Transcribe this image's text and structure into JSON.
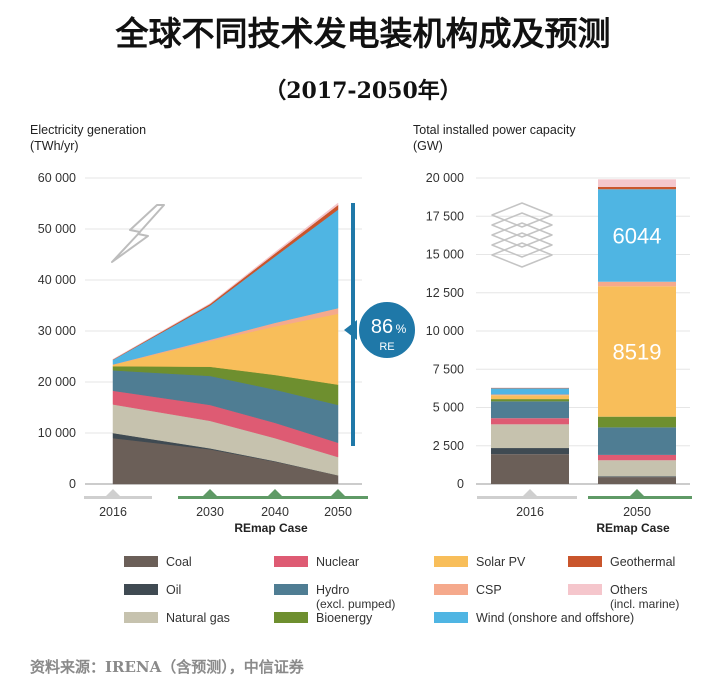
{
  "header": {
    "title": "全球不同技术发电装机构成及预测",
    "subtitle": "（2017-2050年）"
  },
  "footer": {
    "source": "资料来源：IRENA（含预测），中信证券"
  },
  "colors": {
    "coal": "#6b5f58",
    "oil": "#3f4a52",
    "natural_gas": "#c6c2ae",
    "nuclear": "#de5b73",
    "hydro": "#4f7d93",
    "bioenergy": "#6e8f2f",
    "solar_pv": "#f8be5a",
    "csp": "#f5a98c",
    "wind": "#4fb5e3",
    "geothermal": "#c9552c",
    "others": "#f5c6cc",
    "accent": "#1f78a8",
    "timeline_grey": "#cfcfcf",
    "timeline_green": "#5f9a66"
  },
  "icons": {
    "lightning": "lightning-icon",
    "layers": "layers-icon"
  },
  "chart_data": [
    {
      "type": "area",
      "title": "Electricity generation",
      "ylabel": "(TWh/yr)",
      "x": [
        "2016",
        "2030",
        "2040",
        "2050"
      ],
      "x_group_label": "REmap Case",
      "ylim": [
        0,
        60000
      ],
      "yticks": [
        0,
        10000,
        20000,
        30000,
        40000,
        50000,
        60000
      ],
      "ytick_labels": [
        "0",
        "10 000",
        "20 000",
        "30 000",
        "40 000",
        "50 000",
        "60 000"
      ],
      "series": [
        {
          "name": "Coal",
          "key": "coal",
          "values": [
            9000,
            6800,
            4400,
            1700
          ]
        },
        {
          "name": "Oil",
          "key": "oil",
          "values": [
            1000,
            200,
            100,
            0
          ]
        },
        {
          "name": "Natural gas",
          "key": "natural_gas",
          "values": [
            5600,
            5400,
            4500,
            3600
          ]
        },
        {
          "name": "Nuclear",
          "key": "nuclear",
          "values": [
            2700,
            3100,
            3000,
            2800
          ]
        },
        {
          "name": "Hydro",
          "key": "hydro",
          "values": [
            4000,
            5700,
            6500,
            7400
          ]
        },
        {
          "name": "Bioenergy",
          "key": "bioenergy",
          "values": [
            800,
            1800,
            2900,
            4000
          ]
        },
        {
          "name": "Solar PV",
          "key": "solar_pv",
          "values": [
            300,
            5000,
            9500,
            13900
          ]
        },
        {
          "name": "CSP",
          "key": "csp",
          "values": [
            50,
            300,
            700,
            1100
          ]
        },
        {
          "name": "Wind",
          "key": "wind",
          "values": [
            900,
            6700,
            13000,
            19300
          ]
        },
        {
          "name": "Geothermal",
          "key": "geothermal",
          "values": [
            80,
            300,
            600,
            900
          ]
        },
        {
          "name": "Others",
          "key": "others",
          "values": [
            20,
            100,
            250,
            400
          ]
        }
      ],
      "annotation": {
        "value": "86",
        "unit": "%",
        "label": "RE"
      }
    },
    {
      "type": "bar",
      "stacked": true,
      "title": "Total installed power capacity",
      "ylabel": "(GW)",
      "categories": [
        "2016",
        "2050"
      ],
      "x_group_label": "REmap Case",
      "ylim": [
        0,
        20000
      ],
      "yticks": [
        0,
        2500,
        5000,
        7500,
        10000,
        12500,
        15000,
        17500,
        20000
      ],
      "ytick_labels": [
        "0",
        "2 500",
        "5 000",
        "7 500",
        "10 000",
        "12 500",
        "15 000",
        "17 500",
        "20 000"
      ],
      "series": [
        {
          "name": "Coal",
          "key": "coal",
          "values": [
            1950,
            450
          ]
        },
        {
          "name": "Oil",
          "key": "oil",
          "values": [
            400,
            50
          ]
        },
        {
          "name": "Natural gas",
          "key": "natural_gas",
          "values": [
            1550,
            1050
          ]
        },
        {
          "name": "Nuclear",
          "key": "nuclear",
          "values": [
            400,
            350
          ]
        },
        {
          "name": "Hydro",
          "key": "hydro",
          "values": [
            1100,
            1800
          ]
        },
        {
          "name": "Bioenergy",
          "key": "bioenergy",
          "values": [
            150,
            700
          ]
        },
        {
          "name": "Solar PV",
          "key": "solar_pv",
          "values": [
            250,
            8519
          ]
        },
        {
          "name": "CSP",
          "key": "csp",
          "values": [
            50,
            300
          ]
        },
        {
          "name": "Wind",
          "key": "wind",
          "values": [
            400,
            6044
          ]
        },
        {
          "name": "Geothermal",
          "key": "geothermal",
          "values": [
            30,
            150
          ]
        },
        {
          "name": "Others",
          "key": "others",
          "values": [
            20,
            500
          ]
        }
      ],
      "data_labels": [
        {
          "series": "wind",
          "category": "2050",
          "text": "6044"
        },
        {
          "series": "solar_pv",
          "category": "2050",
          "text": "8519"
        }
      ]
    }
  ],
  "legend": {
    "items": [
      {
        "key": "coal",
        "label": "Coal",
        "label2": ""
      },
      {
        "key": "nuclear",
        "label": "Nuclear",
        "label2": ""
      },
      {
        "key": "solar_pv",
        "label": "Solar PV",
        "label2": ""
      },
      {
        "key": "geothermal",
        "label": "Geothermal",
        "label2": ""
      },
      {
        "key": "oil",
        "label": "Oil",
        "label2": ""
      },
      {
        "key": "hydro",
        "label": "Hydro",
        "label2": "(excl. pumped)"
      },
      {
        "key": "csp",
        "label": "CSP",
        "label2": ""
      },
      {
        "key": "others",
        "label": "Others",
        "label2": "(incl. marine)"
      },
      {
        "key": "natural_gas",
        "label": "Natural gas",
        "label2": ""
      },
      {
        "key": "bioenergy",
        "label": "Bioenergy",
        "label2": ""
      },
      {
        "key": "wind",
        "label": "Wind (onshore and offshore)",
        "label2": ""
      }
    ]
  }
}
